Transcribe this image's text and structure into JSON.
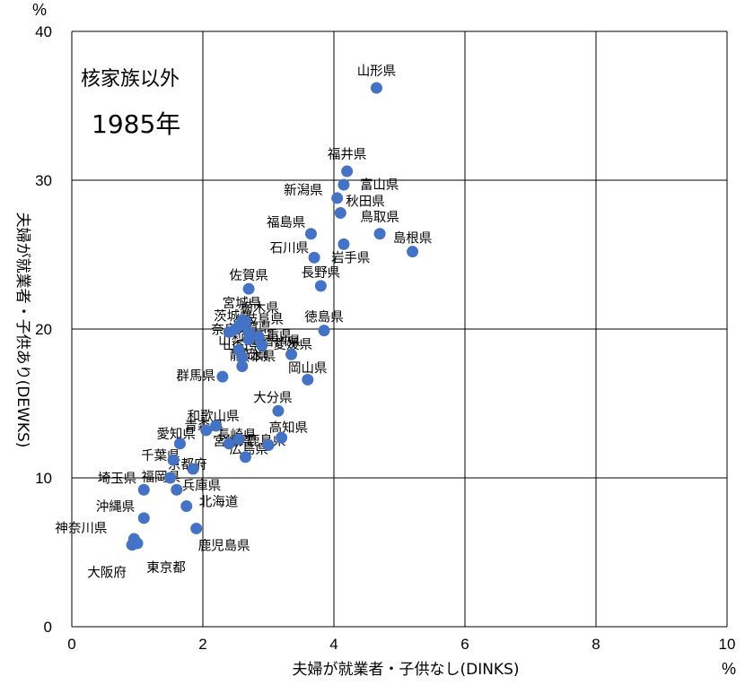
{
  "chart_data": {
    "type": "scatter",
    "title": "",
    "xlabel": "夫婦が就業者・子供なし(DINKS)",
    "ylabel": "夫婦が就業者・子供あり(DEWKS)",
    "x_unit": "%",
    "y_unit": "%",
    "xlim": [
      0,
      10
    ],
    "ylim": [
      0,
      40
    ],
    "x_ticks": [
      "0",
      "2",
      "4",
      "6",
      "8",
      "10"
    ],
    "y_ticks": [
      "0",
      "10",
      "20",
      "30",
      "40"
    ],
    "grid": true,
    "marker_color": "#4472C4",
    "annotations": [
      "核家族以外",
      "1985年"
    ],
    "points": [
      {
        "label": "山形県",
        "x": 4.65,
        "y": 36.2
      },
      {
        "label": "福井県",
        "x": 4.2,
        "y": 30.6
      },
      {
        "label": "富山県",
        "x": 4.15,
        "y": 29.7
      },
      {
        "label": "新潟県",
        "x": 4.05,
        "y": 28.8
      },
      {
        "label": "秋田県",
        "x": 4.1,
        "y": 27.8
      },
      {
        "label": "鳥取県",
        "x": 4.7,
        "y": 26.4
      },
      {
        "label": "福島県",
        "x": 3.65,
        "y": 26.4
      },
      {
        "label": "島根県",
        "x": 5.2,
        "y": 25.2
      },
      {
        "label": "岩手県",
        "x": 4.15,
        "y": 25.7
      },
      {
        "label": "石川県",
        "x": 3.7,
        "y": 24.8
      },
      {
        "label": "長野県",
        "x": 3.8,
        "y": 22.9
      },
      {
        "label": "佐賀県",
        "x": 2.7,
        "y": 22.7
      },
      {
        "label": "宮城県",
        "x": 2.6,
        "y": 20.6
      },
      {
        "label": "茨城県",
        "x": 2.55,
        "y": 20.2
      },
      {
        "label": "栃木県",
        "x": 2.65,
        "y": 20.5
      },
      {
        "label": "岐阜県",
        "x": 2.5,
        "y": 20.0
      },
      {
        "label": "滋賀県",
        "x": 2.7,
        "y": 19.8
      },
      {
        "label": "奈良県",
        "x": 2.4,
        "y": 19.8
      },
      {
        "label": "三重県",
        "x": 2.85,
        "y": 19.5
      },
      {
        "label": "山梨県",
        "x": 2.7,
        "y": 19.3
      },
      {
        "label": "徳島県",
        "x": 3.85,
        "y": 19.9
      },
      {
        "label": "香川県",
        "x": 2.9,
        "y": 18.9
      },
      {
        "label": "山口県",
        "x": 2.55,
        "y": 18.6
      },
      {
        "label": "静岡県",
        "x": 2.6,
        "y": 18.1
      },
      {
        "label": "熊本県",
        "x": 2.6,
        "y": 17.5
      },
      {
        "label": "愛媛県",
        "x": 3.35,
        "y": 18.3
      },
      {
        "label": "岡山県",
        "x": 3.6,
        "y": 16.6
      },
      {
        "label": "群馬県",
        "x": 2.3,
        "y": 16.8
      },
      {
        "label": "大分県",
        "x": 3.15,
        "y": 14.5
      },
      {
        "label": "和歌山県",
        "x": 2.2,
        "y": 13.5
      },
      {
        "label": "青森県",
        "x": 2.05,
        "y": 13.2
      },
      {
        "label": "愛知県",
        "x": 1.65,
        "y": 12.3
      },
      {
        "label": "宮崎県",
        "x": 2.4,
        "y": 12.3
      },
      {
        "label": "長崎県",
        "x": 2.55,
        "y": 12.6
      },
      {
        "label": "高知県",
        "x": 3.2,
        "y": 12.7
      },
      {
        "label": "鹿島県",
        "x": 3.0,
        "y": 12.2
      },
      {
        "label": "広島県",
        "x": 2.65,
        "y": 11.4
      },
      {
        "label": "京都府",
        "x": 1.85,
        "y": 10.6
      },
      {
        "label": "千葉県",
        "x": 1.55,
        "y": 11.2
      },
      {
        "label": "福岡県",
        "x": 1.5,
        "y": 10.0
      },
      {
        "label": "兵庫県",
        "x": 1.6,
        "y": 9.2
      },
      {
        "label": "北海道",
        "x": 1.75,
        "y": 8.1
      },
      {
        "label": "埼玉県",
        "x": 1.1,
        "y": 9.2
      },
      {
        "label": "沖縄県",
        "x": 1.1,
        "y": 7.3
      },
      {
        "label": "鹿児島県",
        "x": 1.9,
        "y": 6.6
      },
      {
        "label": "神奈川県",
        "x": 0.95,
        "y": 5.9
      },
      {
        "label": "大阪府",
        "x": 0.92,
        "y": 5.5
      },
      {
        "label": "東京都",
        "x": 1.0,
        "y": 5.6
      }
    ]
  }
}
